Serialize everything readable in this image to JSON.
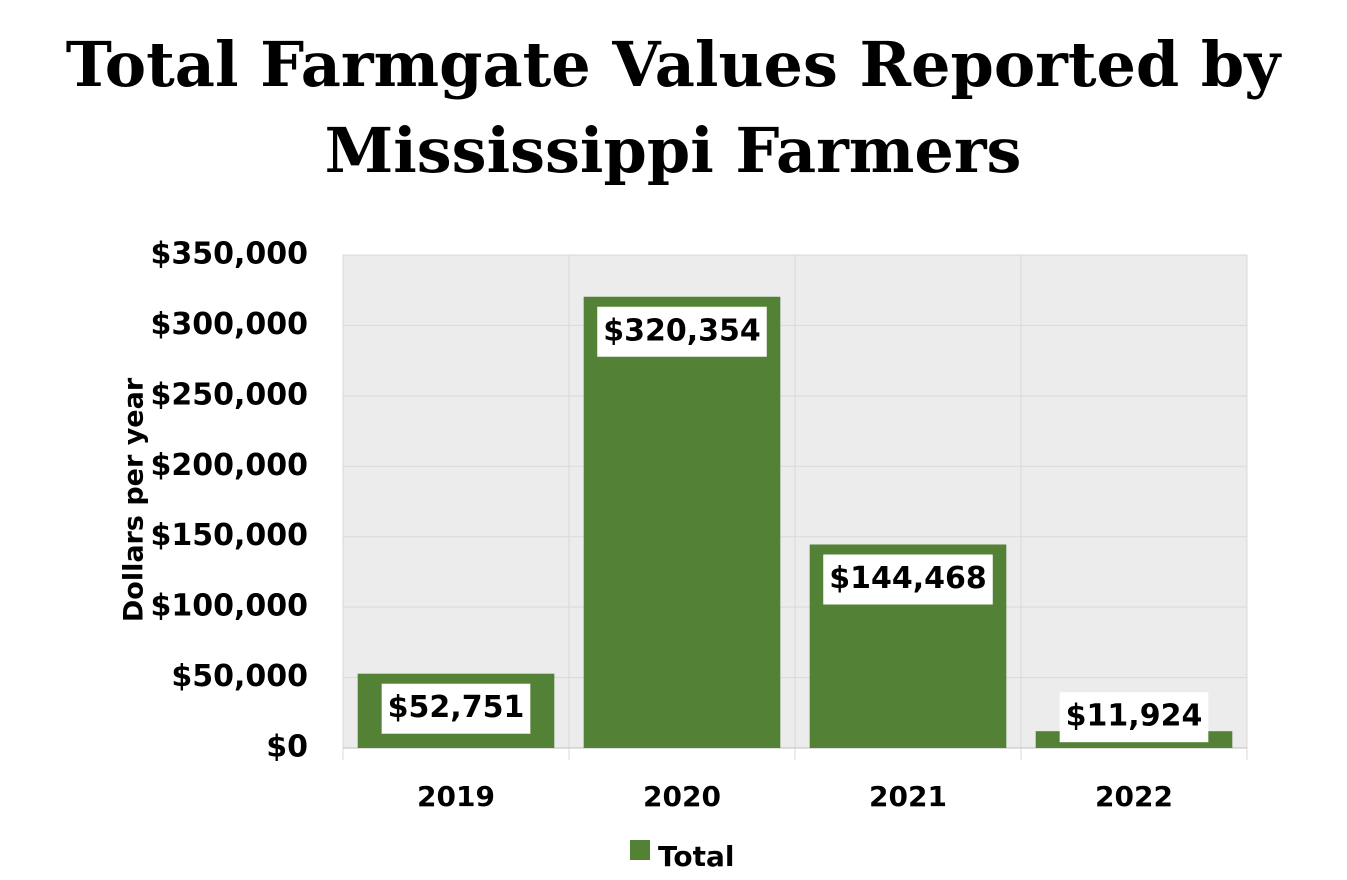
{
  "chart_data": {
    "type": "bar",
    "title": "Total Farmgate Values Reported by Mississippi Farmers",
    "y_label": "Dollars per year",
    "categories": [
      "2019",
      "2020",
      "2021",
      "2022"
    ],
    "series": [
      {
        "name": "Total",
        "color": "#538135",
        "values": [
          52751,
          320354,
          144468,
          11924
        ],
        "value_labels": [
          "$52,751",
          "$320,354",
          "$144,468",
          "$11,924"
        ]
      }
    ],
    "ylim": [
      0,
      350000
    ],
    "yticks": [
      {
        "value": 0,
        "label": "$0"
      },
      {
        "value": 50000,
        "label": "$50,000"
      },
      {
        "value": 100000,
        "label": "$100,000"
      },
      {
        "value": 150000,
        "label": "$150,000"
      },
      {
        "value": 200000,
        "label": "$200,000"
      },
      {
        "value": 250000,
        "label": "$250,000"
      },
      {
        "value": 300000,
        "label": "$300,000"
      },
      {
        "value": 350000,
        "label": "$350,000"
      }
    ],
    "grid": true,
    "legend": "bottom"
  }
}
